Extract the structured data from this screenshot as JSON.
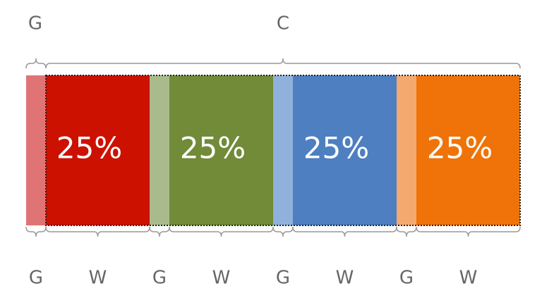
{
  "top": {
    "gutter": "G",
    "container": "C"
  },
  "columns": [
    {
      "share": "25%",
      "gutter": "G",
      "width": "W"
    },
    {
      "share": "25%",
      "gutter": "G",
      "width": "W"
    },
    {
      "share": "25%",
      "gutter": "G",
      "width": "W"
    },
    {
      "share": "25%",
      "gutter": "G",
      "width": "W"
    }
  ]
}
